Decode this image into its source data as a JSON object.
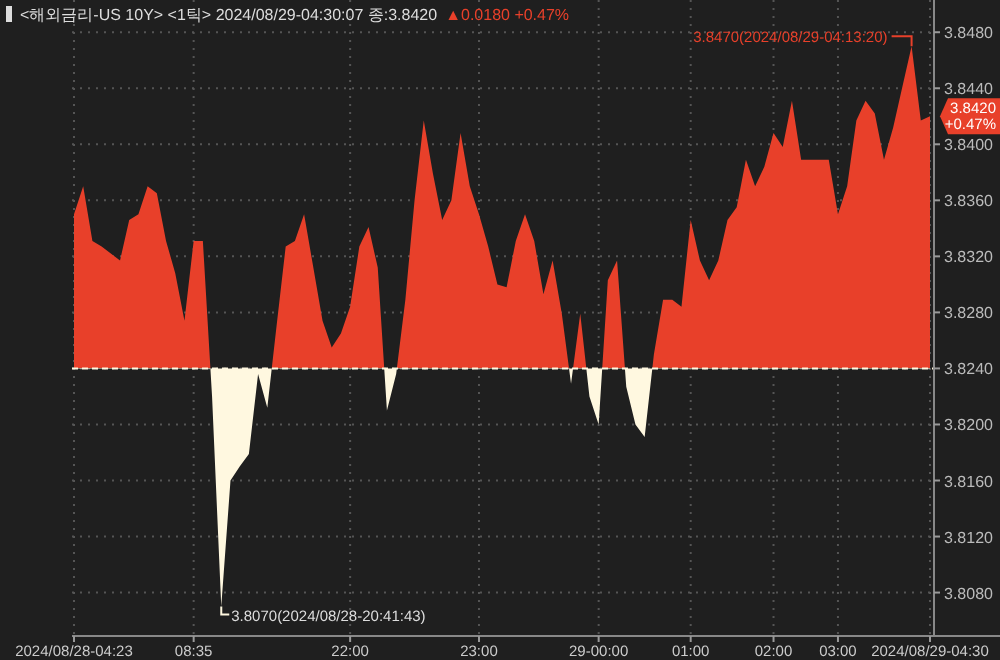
{
  "chart_data": {
    "type": "area",
    "categories": [
      "2024/08/28-04:23",
      null,
      null,
      null,
      null,
      null,
      null,
      null,
      null,
      null,
      null,
      null,
      null,
      "08:35",
      null,
      null,
      null,
      null,
      null,
      null,
      null,
      null,
      null,
      null,
      null,
      null,
      null,
      null,
      null,
      null,
      "22:00",
      null,
      null,
      null,
      null,
      null,
      null,
      null,
      null,
      null,
      null,
      null,
      null,
      null,
      "23:00",
      null,
      null,
      null,
      null,
      null,
      null,
      null,
      null,
      null,
      null,
      null,
      null,
      "29-00:00",
      null,
      null,
      null,
      null,
      null,
      null,
      null,
      null,
      null,
      "01:00",
      null,
      null,
      null,
      null,
      null,
      null,
      null,
      null,
      "02:00",
      null,
      null,
      null,
      null,
      null,
      null,
      "03:00",
      null,
      null,
      null,
      null,
      null,
      null,
      null,
      null,
      null,
      "2024/08/29-04:30"
    ],
    "title": "<해외금리-US 10Y> <1틱> 2024/08/29-04:30:07 종:3.8420",
    "subtitle": "▲0.0180 +0.47%",
    "series": [
      {
        "color": "#e8402a",
        "values": [
          3.835,
          3.837,
          3.8331,
          3.8327,
          3.8322,
          3.8317,
          3.8346,
          3.835,
          3.837,
          3.8365,
          3.8331,
          3.8308,
          3.8274,
          3.8331,
          3.8331,
          3.822,
          3.807,
          3.816,
          3.817,
          3.8179,
          3.8236,
          3.8212,
          3.827,
          3.8327,
          3.8331,
          3.835,
          3.8312,
          3.8274,
          3.8255,
          3.8265,
          3.8284,
          3.8327,
          3.8341,
          3.8312,
          3.821,
          3.8236,
          3.8289,
          3.836,
          3.8417,
          3.8379,
          3.8346,
          3.836,
          3.8408,
          3.837,
          3.835,
          3.8327,
          3.83,
          3.8298,
          3.8331,
          3.835,
          3.8331,
          3.8293,
          3.8317,
          3.8279,
          3.8229,
          3.8279,
          3.822,
          3.82,
          3.8303,
          3.8317,
          3.8227,
          3.82,
          3.8191,
          3.825,
          3.8289,
          3.8289,
          3.8284,
          3.8346,
          3.8317,
          3.8303,
          3.8317,
          3.8346,
          3.8355,
          3.8389,
          3.837,
          3.8384,
          3.8408,
          3.8398,
          3.8431,
          3.8389,
          3.8389,
          3.8389,
          3.8389,
          3.835,
          3.837,
          3.8417,
          3.8431,
          3.8422,
          3.8389,
          3.8412,
          3.8441,
          3.847,
          3.8417,
          3.842
        ]
      }
    ],
    "ylim": [
      3.8049,
      3.8503
    ],
    "yticks": [
      {
        "value": 3.808,
        "label": "3.8080"
      },
      {
        "value": 3.812,
        "label": "3.8120"
      },
      {
        "value": 3.816,
        "label": "3.8160"
      },
      {
        "value": 3.82,
        "label": "3.8200"
      },
      {
        "value": 3.824,
        "label": "3.8240"
      },
      {
        "value": 3.828,
        "label": "3.8280"
      },
      {
        "value": 3.832,
        "label": "3.8320"
      },
      {
        "value": 3.836,
        "label": "3.8360"
      },
      {
        "value": 3.84,
        "label": "3.8400"
      },
      {
        "value": 3.844,
        "label": "3.8440"
      },
      {
        "value": 3.848,
        "label": "3.8480"
      }
    ],
    "grid": true,
    "ref_lines": [
      {
        "axis": "y",
        "value": 3.824,
        "color": "#fff8e0",
        "line_style": "dashed"
      }
    ],
    "annotations": [
      "3.8470(2024/08/29-04:13:20)",
      "3.8070(2024/08/28-20:41:43)",
      "3.8420 +0.47%"
    ]
  }
}
